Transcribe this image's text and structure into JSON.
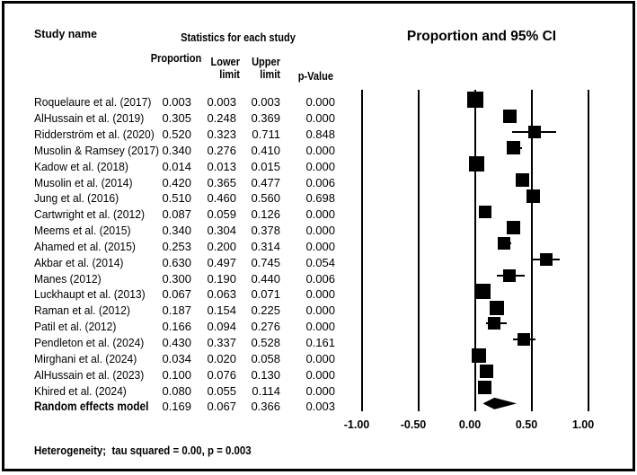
{
  "headers": {
    "study_name": "Study name",
    "stats_title": "Statistics for each study",
    "proportion": "Proportion",
    "lower_line1": "Lower",
    "lower_line2": "limit",
    "upper_line1": "Upper",
    "upper_line2": "limit",
    "p_value": "p-Value",
    "plot_title": "Proportion and 95% CI"
  },
  "footer": {
    "heterogeneity": "Heterogeneity;  tau squared = 0.00, p = 0.003"
  },
  "colors": {
    "ink": "#000000",
    "background": "#ffffff"
  },
  "chart_data": {
    "type": "forest",
    "title": "Proportion and 95% CI",
    "xlabel": "",
    "xlim": [
      -1.0,
      1.0
    ],
    "grid": "vertical-lines-at-ticks",
    "axis": {
      "ticks": [
        -1.0,
        -0.5,
        0.0,
        0.5,
        1.0
      ],
      "labels": [
        "-1.00",
        "-0.50",
        "0.00",
        "0.50",
        "1.00"
      ]
    },
    "columns": [
      "Proportion",
      "Lower limit",
      "Upper limit",
      "p-Value"
    ],
    "studies": [
      {
        "name": "Roquelaure et al. (2017)",
        "proportion": "0.003",
        "lower": "0.003",
        "upper": "0.003",
        "p": "0.000",
        "marker_size": 18
      },
      {
        "name": "AlHussain et al. (2019)",
        "proportion": "0.305",
        "lower": "0.248",
        "upper": "0.369",
        "p": "0.000",
        "marker_size": 15
      },
      {
        "name": "Ridderström et al. (2020)",
        "proportion": "0.520",
        "lower": "0.323",
        "upper": "0.711",
        "p": "0.848",
        "marker_size": 14
      },
      {
        "name": "Musolin & Ramsey (2017)",
        "proportion": "0.340",
        "lower": "0.276",
        "upper": "0.410",
        "p": "0.000",
        "marker_size": 15
      },
      {
        "name": "Kadow et al. (2018)",
        "proportion": "0.014",
        "lower": "0.013",
        "upper": "0.015",
        "p": "0.000",
        "marker_size": 17
      },
      {
        "name": "Musolin et al. (2014)",
        "proportion": "0.420",
        "lower": "0.365",
        "upper": "0.477",
        "p": "0.006",
        "marker_size": 15
      },
      {
        "name": "Jung et al. (2016)",
        "proportion": "0.510",
        "lower": "0.460",
        "upper": "0.560",
        "p": "0.698",
        "marker_size": 15
      },
      {
        "name": "Cartwright et al. (2012)",
        "proportion": "0.087",
        "lower": "0.059",
        "upper": "0.126",
        "p": "0.000",
        "marker_size": 14
      },
      {
        "name": "Meems et al. (2015)",
        "proportion": "0.340",
        "lower": "0.304",
        "upper": "0.378",
        "p": "0.000",
        "marker_size": 15
      },
      {
        "name": "Ahamed et al. (2015)",
        "proportion": "0.253",
        "lower": "0.200",
        "upper": "0.314",
        "p": "0.000",
        "marker_size": 14
      },
      {
        "name": "Akbar et al. (2014)",
        "proportion": "0.630",
        "lower": "0.497",
        "upper": "0.745",
        "p": "0.054",
        "marker_size": 14
      },
      {
        "name": "Manes (2012)",
        "proportion": "0.300",
        "lower": "0.190",
        "upper": "0.440",
        "p": "0.006",
        "marker_size": 14
      },
      {
        "name": "Luckhaupt et al. (2013)",
        "proportion": "0.067",
        "lower": "0.063",
        "upper": "0.071",
        "p": "0.000",
        "marker_size": 17
      },
      {
        "name": "Raman et al. (2012)",
        "proportion": "0.187",
        "lower": "0.154",
        "upper": "0.225",
        "p": "0.000",
        "marker_size": 16
      },
      {
        "name": "Patil et al. (2012)",
        "proportion": "0.166",
        "lower": "0.094",
        "upper": "0.276",
        "p": "0.000",
        "marker_size": 14
      },
      {
        "name": "Pendleton et al. (2024)",
        "proportion": "0.430",
        "lower": "0.337",
        "upper": "0.528",
        "p": "0.161",
        "marker_size": 14
      },
      {
        "name": "Mirghani et al. (2024)",
        "proportion": "0.034",
        "lower": "0.020",
        "upper": "0.058",
        "p": "0.000",
        "marker_size": 16
      },
      {
        "name": "AlHussain et al. (2023)",
        "proportion": "0.100",
        "lower": "0.076",
        "upper": "0.130",
        "p": "0.000",
        "marker_size": 15
      },
      {
        "name": "Khired et al. (2024)",
        "proportion": "0.080",
        "lower": "0.055",
        "upper": "0.114",
        "p": "0.000",
        "marker_size": 15
      }
    ],
    "summary": {
      "name": "Random effects model",
      "proportion": "0.169",
      "lower": "0.067",
      "upper": "0.366",
      "p": "0.003",
      "marker": "diamond"
    }
  }
}
